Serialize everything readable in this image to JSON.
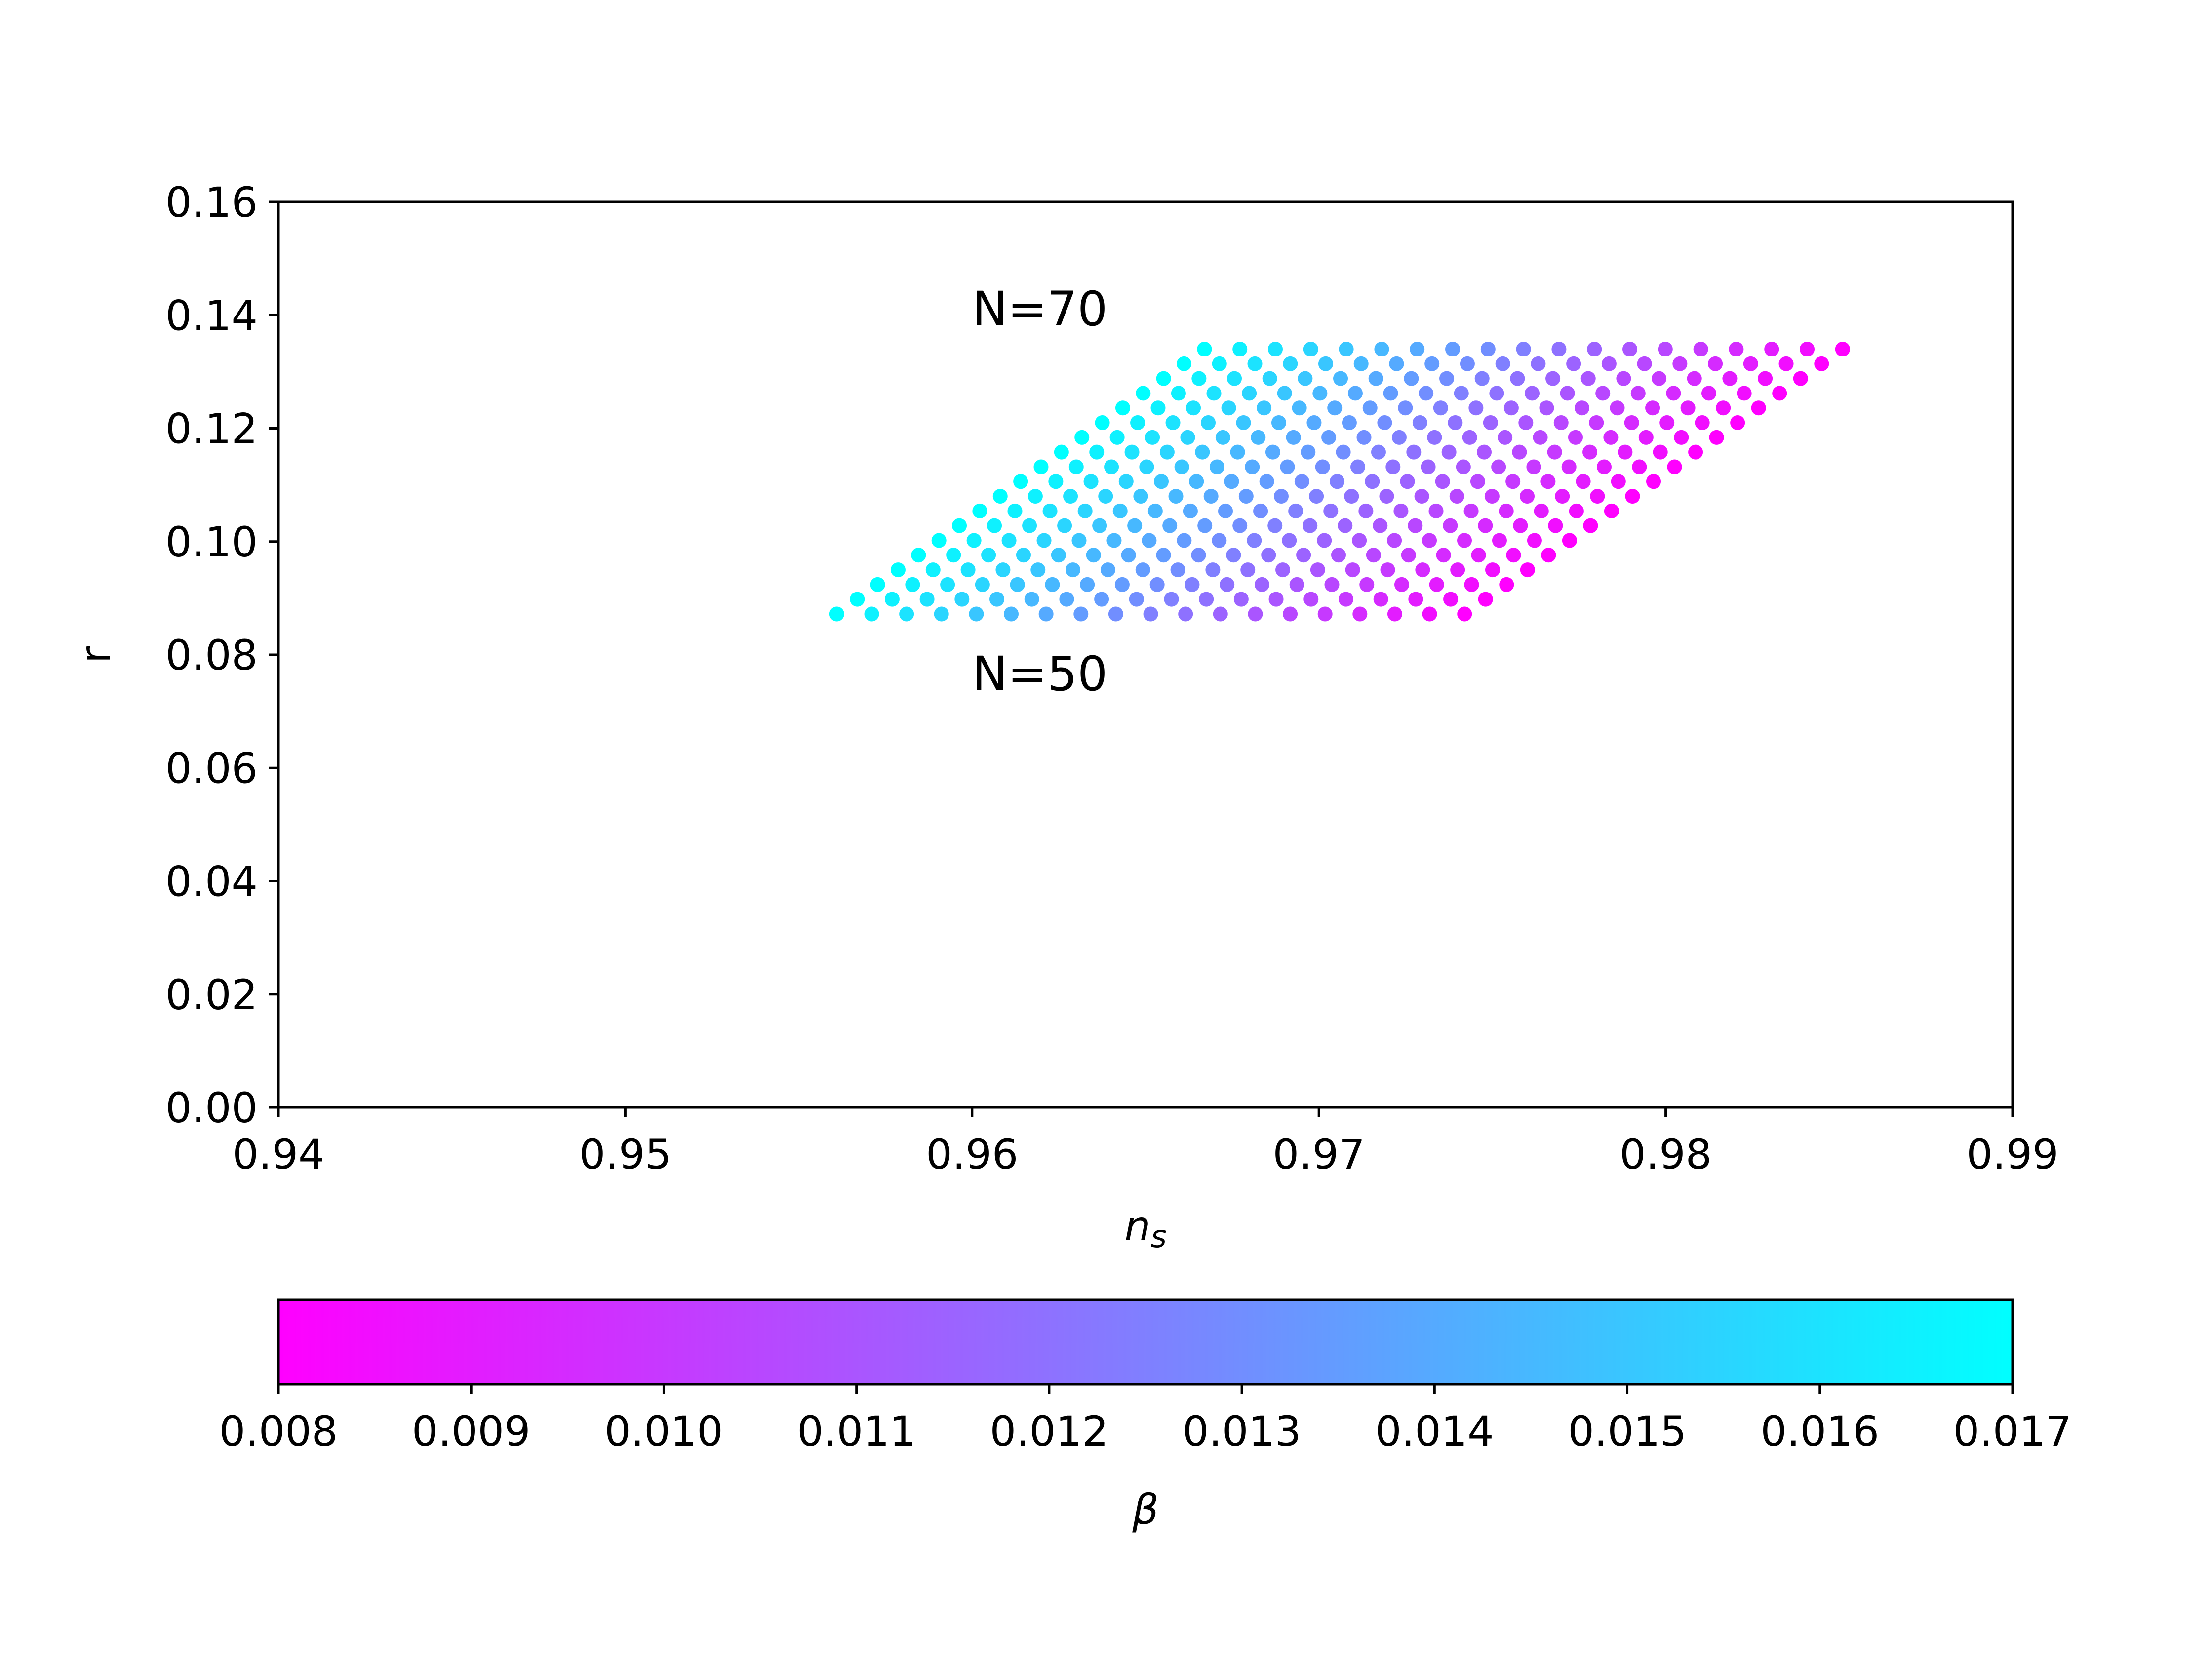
{
  "chart_data": {
    "type": "scatter",
    "title": "",
    "xlabel_main": "n",
    "xlabel_sub": "s",
    "ylabel": "r",
    "xlim": [
      0.94,
      0.99
    ],
    "ylim": [
      0.0,
      0.16
    ],
    "x_ticks": [
      "0.94",
      "0.95",
      "0.96",
      "0.97",
      "0.98",
      "0.99"
    ],
    "y_ticks": [
      "0.00",
      "0.02",
      "0.04",
      "0.06",
      "0.08",
      "0.10",
      "0.12",
      "0.14",
      "0.16"
    ],
    "annotations": [
      {
        "text": "N=70",
        "x": 0.96,
        "y": 0.141
      },
      {
        "text": "N=50",
        "x": 0.96,
        "y": 0.0765
      }
    ],
    "grid": false,
    "colormap": "cool",
    "colorbar": {
      "label": "β",
      "orientation": "horizontal",
      "placement": "bottom",
      "range": [
        0.008,
        0.017
      ],
      "ticks": [
        "0.008",
        "0.009",
        "0.010",
        "0.011",
        "0.012",
        "0.013",
        "0.014",
        "0.015",
        "0.016",
        "0.017"
      ],
      "low_color": "#ff00ff",
      "high_color": "#00ffff"
    },
    "series": [
      {
        "description_values": "grid of points: rows at N = 50..70 (r from 0.0872 to 0.134), beta from 0.0170 down to 0.0080 in 19 steps",
        "rows": 19,
        "cols": 19,
        "r_min": 0.0872,
        "r_max": 0.134,
        "ns_bottom_left": 0.9561,
        "ns_top_left": 0.9667,
        "ns_bottom_right": 0.9742,
        "ns_top_right": 0.9851,
        "beta_max": 0.017,
        "beta_min": 0.008
      }
    ]
  }
}
